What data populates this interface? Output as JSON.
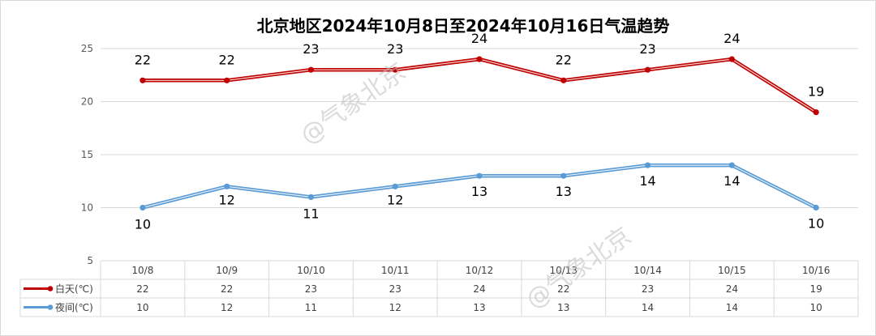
{
  "chart_data": {
    "type": "line",
    "title": "北京地区2024年10月8日至2024年10月16日气温趋势",
    "categories": [
      "10/8",
      "10/9",
      "10/10",
      "10/11",
      "10/12",
      "10/13",
      "10/14",
      "10/15",
      "10/16"
    ],
    "ylim": [
      5,
      25
    ],
    "yticks": [
      5,
      10,
      15,
      20,
      25
    ],
    "grid": true,
    "legend": "data-table-left",
    "series": [
      {
        "name": "白天(℃)",
        "values": [
          22,
          22,
          23,
          23,
          24,
          22,
          23,
          24,
          19
        ],
        "color": "#c00000"
      },
      {
        "name": "夜间(℃)",
        "values": [
          10,
          12,
          11,
          12,
          13,
          13,
          14,
          14,
          10
        ],
        "color": "#5b9bd5"
      }
    ]
  },
  "watermark": "@气象北京"
}
